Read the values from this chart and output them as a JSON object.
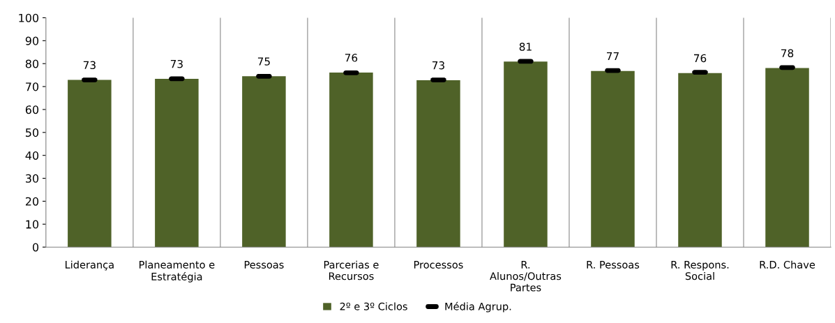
{
  "chart_data": {
    "type": "bar",
    "categories": [
      "Liderança",
      "Planeamento e\nEstratégia",
      "Pessoas",
      "Parcerias e\nRecursos",
      "Processos",
      "R.\nAlunos/Outras\nPartes",
      "R. Pessoas",
      "R. Respons.\nSocial",
      "R.D. Chave"
    ],
    "series": [
      {
        "name": "2º e 3º Ciclos",
        "color": "#4f6228",
        "values": [
          72.9,
          73.4,
          74.5,
          76.1,
          72.8,
          80.9,
          76.8,
          75.9,
          78.1
        ],
        "value_labels": [
          "73",
          "73",
          "75",
          "76",
          "73",
          "81",
          "77",
          "76",
          "78"
        ]
      },
      {
        "name": "Média Agrup.",
        "type": "scatter",
        "color": "#000000",
        "values": [
          72.9,
          73.4,
          74.5,
          76.0,
          72.9,
          81.0,
          77.0,
          76.2,
          78.3
        ]
      }
    ],
    "ylim": [
      0,
      100
    ],
    "yticks": [
      0,
      10,
      20,
      30,
      40,
      50,
      60,
      70,
      80,
      90,
      100
    ],
    "grid": "x",
    "legend": "bottom"
  }
}
